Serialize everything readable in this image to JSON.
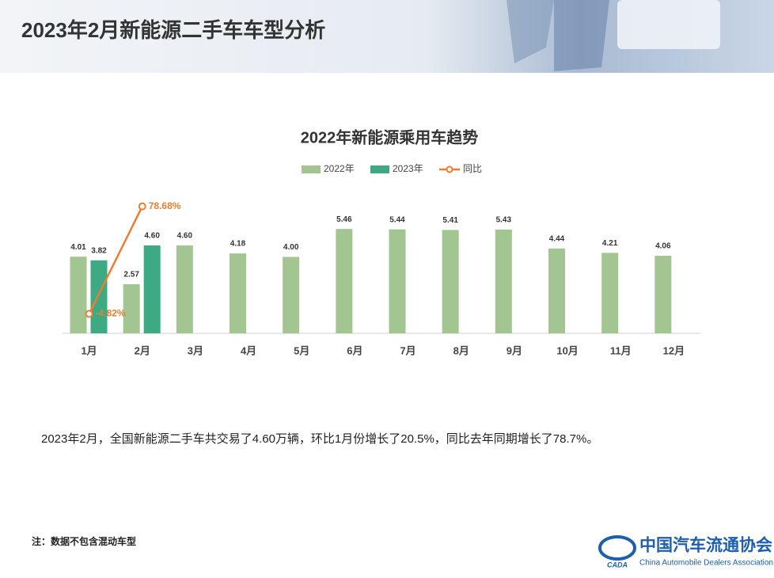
{
  "header": {
    "title": "2023年2月新能源二手车车型分析"
  },
  "chart_data": {
    "type": "bar",
    "title": "2022年新能源乘用车趋势",
    "categories": [
      "1月",
      "2月",
      "3月",
      "4月",
      "5月",
      "6月",
      "7月",
      "8月",
      "9月",
      "10月",
      "11月",
      "12月"
    ],
    "series": [
      {
        "name": "2022年",
        "color": "#a3c592",
        "values": [
          4.01,
          2.57,
          4.6,
          4.18,
          4.0,
          5.46,
          5.44,
          5.41,
          5.43,
          4.44,
          4.21,
          4.06
        ],
        "value_labels": [
          "4.01",
          "2.57",
          "4.60",
          "4.18",
          "4.00",
          "5.46",
          "5.44",
          "5.41",
          "5.43",
          "4.44",
          "4.21",
          "4.06"
        ]
      },
      {
        "name": "2023年",
        "color": "#3daa84",
        "values": [
          3.82,
          4.6,
          null,
          null,
          null,
          null,
          null,
          null,
          null,
          null,
          null,
          null
        ],
        "value_labels": [
          "3.82",
          "4.60",
          null,
          null,
          null,
          null,
          null,
          null,
          null,
          null,
          null,
          null
        ]
      },
      {
        "name": "同比",
        "type": "line",
        "axis": "y2",
        "color": "#ed7d31",
        "values": [
          -4.82,
          78.68,
          null,
          null,
          null,
          null,
          null,
          null,
          null,
          null,
          null,
          null
        ],
        "value_labels": [
          "-4.82%",
          "78.68%",
          null,
          null,
          null,
          null,
          null,
          null,
          null,
          null,
          null,
          null
        ]
      }
    ],
    "ylim": [
      0,
      7
    ],
    "y2lim": [
      -20,
      84
    ],
    "legend": "top",
    "grid": false
  },
  "body": {
    "text": "2023年2月，全国新能源二手车共交易了4.60万辆，环比1月份增长了20.5%，同比去年同期增长了78.7%。"
  },
  "note": {
    "text": "注：数据不包含混动车型"
  },
  "logo": {
    "mark": "CADA",
    "name_cn": "中国汽车流通协会",
    "name_en": "China Automobile Dealers Association"
  }
}
